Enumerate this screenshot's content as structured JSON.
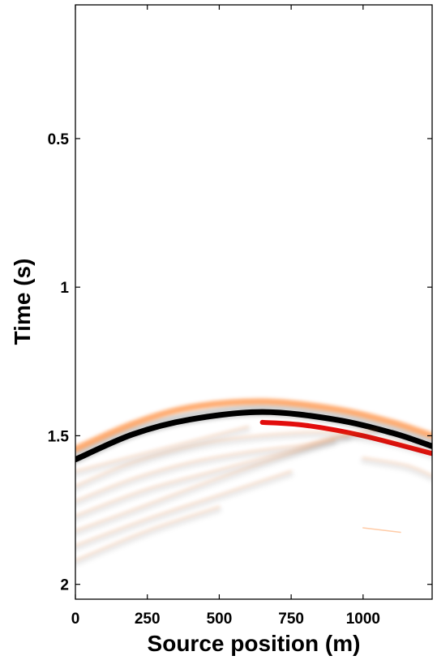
{
  "chart_data": {
    "type": "heatmap",
    "title": "",
    "xlabel": "Source position (m)",
    "ylabel": "Time (s)",
    "xlim": [
      0,
      1240
    ],
    "ylim": [
      0.05,
      2.05
    ],
    "y_inverted": true,
    "x_ticks": [
      {
        "value": 0,
        "label": "0"
      },
      {
        "value": 250,
        "label": "250"
      },
      {
        "value": 500,
        "label": "500"
      },
      {
        "value": 750,
        "label": "750"
      },
      {
        "value": 1000,
        "label": "1000"
      }
    ],
    "y_ticks": [
      {
        "value": 0.5,
        "label": "0.5"
      },
      {
        "value": 1,
        "label": "1"
      },
      {
        "value": 1.5,
        "label": "1.5"
      },
      {
        "value": 2,
        "label": "2"
      }
    ],
    "colormap": {
      "negative": "#ff6a00",
      "positive": "#000000",
      "accent": "#e00000",
      "background": "#ffffff"
    },
    "events": [
      {
        "role": "main",
        "points": [
          [
            0,
            1.58
          ],
          [
            200,
            1.495
          ],
          [
            400,
            1.445
          ],
          [
            650,
            1.42
          ],
          [
            900,
            1.445
          ],
          [
            1100,
            1.49
          ],
          [
            1240,
            1.535
          ]
        ]
      },
      {
        "role": "main-precursor",
        "points": [
          [
            0,
            1.545
          ],
          [
            200,
            1.46
          ],
          [
            400,
            1.405
          ],
          [
            650,
            1.385
          ],
          [
            900,
            1.41
          ],
          [
            1100,
            1.455
          ],
          [
            1240,
            1.5
          ]
        ]
      },
      {
        "role": "main-trailing-red",
        "points": [
          [
            650,
            1.455
          ],
          [
            800,
            1.465
          ],
          [
            1000,
            1.5
          ],
          [
            1240,
            1.56
          ]
        ]
      },
      {
        "role": "weak",
        "points": [
          [
            0,
            1.63
          ],
          [
            200,
            1.58
          ],
          [
            400,
            1.53
          ],
          [
            600,
            1.48
          ]
        ]
      },
      {
        "role": "weak",
        "points": [
          [
            0,
            1.68
          ],
          [
            200,
            1.6
          ],
          [
            450,
            1.535
          ],
          [
            700,
            1.505
          ],
          [
            900,
            1.5
          ],
          [
            1100,
            1.53
          ],
          [
            1240,
            1.57
          ]
        ]
      },
      {
        "role": "weak",
        "points": [
          [
            0,
            1.73
          ],
          [
            200,
            1.655
          ],
          [
            400,
            1.6
          ],
          [
            600,
            1.565
          ],
          [
            800,
            1.54
          ],
          [
            950,
            1.51
          ]
        ]
      },
      {
        "role": "weak",
        "points": [
          [
            0,
            1.78
          ],
          [
            250,
            1.69
          ],
          [
            500,
            1.625
          ],
          [
            750,
            1.56
          ],
          [
            900,
            1.515
          ],
          [
            1050,
            1.49
          ]
        ]
      },
      {
        "role": "weak",
        "points": [
          [
            0,
            1.83
          ],
          [
            200,
            1.76
          ],
          [
            450,
            1.67
          ],
          [
            700,
            1.585
          ],
          [
            900,
            1.525
          ]
        ]
      },
      {
        "role": "weak",
        "points": [
          [
            0,
            1.88
          ],
          [
            250,
            1.79
          ],
          [
            500,
            1.71
          ],
          [
            750,
            1.63
          ]
        ]
      },
      {
        "role": "weak",
        "points": [
          [
            0,
            1.93
          ],
          [
            250,
            1.83
          ],
          [
            500,
            1.75
          ]
        ]
      },
      {
        "role": "weak",
        "points": [
          [
            1000,
            1.585
          ],
          [
            1150,
            1.61
          ],
          [
            1240,
            1.645
          ]
        ]
      },
      {
        "role": "weak-short",
        "points": [
          [
            1000,
            1.81
          ],
          [
            1130,
            1.825
          ]
        ]
      }
    ]
  }
}
